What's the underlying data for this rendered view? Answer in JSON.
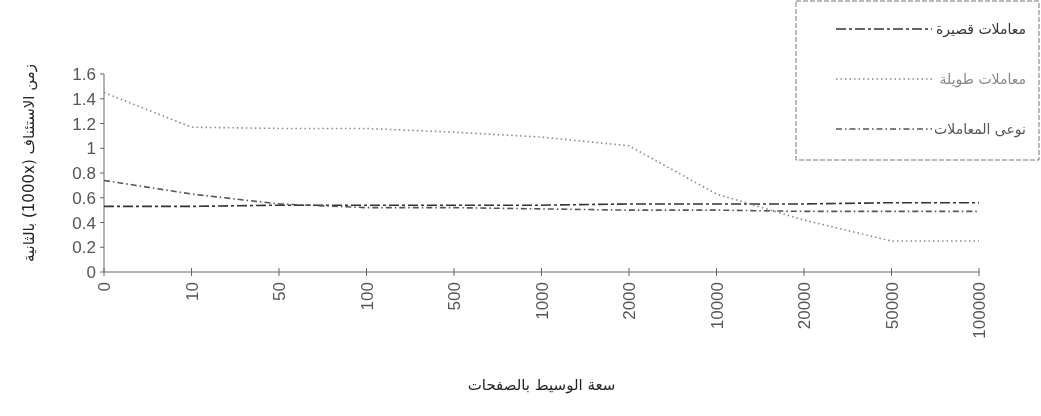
{
  "chart_data": {
    "type": "line",
    "xlabel": "سعة الوسيط بالصفحات",
    "ylabel": "زمن الاستئناف (1000x) بالثانية",
    "categories": [
      "0",
      "10",
      "50",
      "100",
      "500",
      "1000",
      "2000",
      "10000",
      "20000",
      "50000",
      "100000"
    ],
    "series": [
      {
        "name": "معاملات قصيرة",
        "color": "#333333",
        "line_style": "dashed",
        "values": [
          0.53,
          0.53,
          0.54,
          0.54,
          0.54,
          0.54,
          0.55,
          0.55,
          0.55,
          0.56,
          0.56
        ]
      },
      {
        "name": "معاملات طويلة",
        "color": "#888888",
        "line_style": "dotted",
        "values": [
          1.45,
          1.17,
          1.16,
          1.16,
          1.13,
          1.09,
          1.02,
          0.63,
          0.42,
          0.25,
          0.25
        ]
      },
      {
        "name": "نوعى المعاملات",
        "color": "#555555",
        "line_style": "dashdotted",
        "values": [
          0.74,
          0.63,
          0.55,
          0.52,
          0.52,
          0.51,
          0.5,
          0.5,
          0.49,
          0.49,
          0.49
        ]
      }
    ],
    "ylim": [
      0,
      1.6
    ],
    "yticks": [
      0,
      0.2,
      0.4,
      0.6,
      0.8,
      1,
      1.2,
      1.4,
      1.6
    ],
    "grid": false,
    "legend": "top right",
    "marker": "none"
  }
}
